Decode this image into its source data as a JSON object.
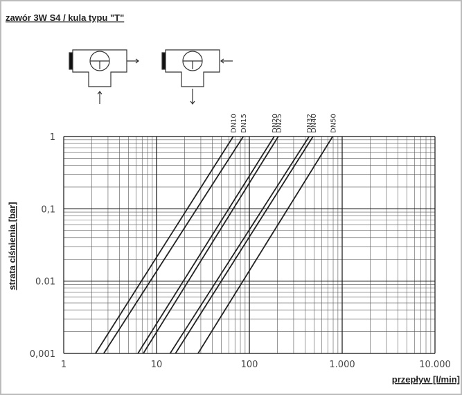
{
  "chart_data": {
    "type": "line",
    "title": "zawór 3W S4 / kula typu \"T\"",
    "y_label": "strata ciśnienia [bar]",
    "x_label": "przepływ [l/min]",
    "log_x": true,
    "log_y": true,
    "grid": true,
    "color": "#222",
    "xlim": [
      1,
      10000
    ],
    "ylim": [
      0.001,
      1
    ],
    "xticks": [
      1,
      10,
      100,
      {
        "value": 1000,
        "label": "1.000"
      },
      {
        "value": 10000,
        "label": "10.000"
      }
    ],
    "yticks": [
      {
        "value": 0.001,
        "label": "0,001"
      },
      0.01,
      {
        "value": 0.1,
        "label": "0,1"
      },
      1
    ],
    "series": [
      {
        "name": "DN10",
        "x": [
          2.2,
          67
        ],
        "values": [
          0.001,
          1
        ]
      },
      {
        "name": "DN15",
        "x": [
          2.7,
          86
        ],
        "values": [
          0.001,
          1
        ]
      },
      {
        "name": "DN20",
        "x": [
          6.3,
          185
        ],
        "values": [
          0.001,
          1
        ]
      },
      {
        "name": "DN25",
        "x": [
          7.2,
          205
        ],
        "values": [
          0.001,
          1
        ]
      },
      {
        "name": "DN32",
        "x": [
          14,
          440
        ],
        "values": [
          0.001,
          1
        ]
      },
      {
        "name": "DN40",
        "x": [
          16,
          485
        ],
        "values": [
          0.001,
          1
        ]
      },
      {
        "name": "DN50",
        "x": [
          28,
          790
        ],
        "values": [
          0.001,
          1
        ]
      }
    ]
  }
}
